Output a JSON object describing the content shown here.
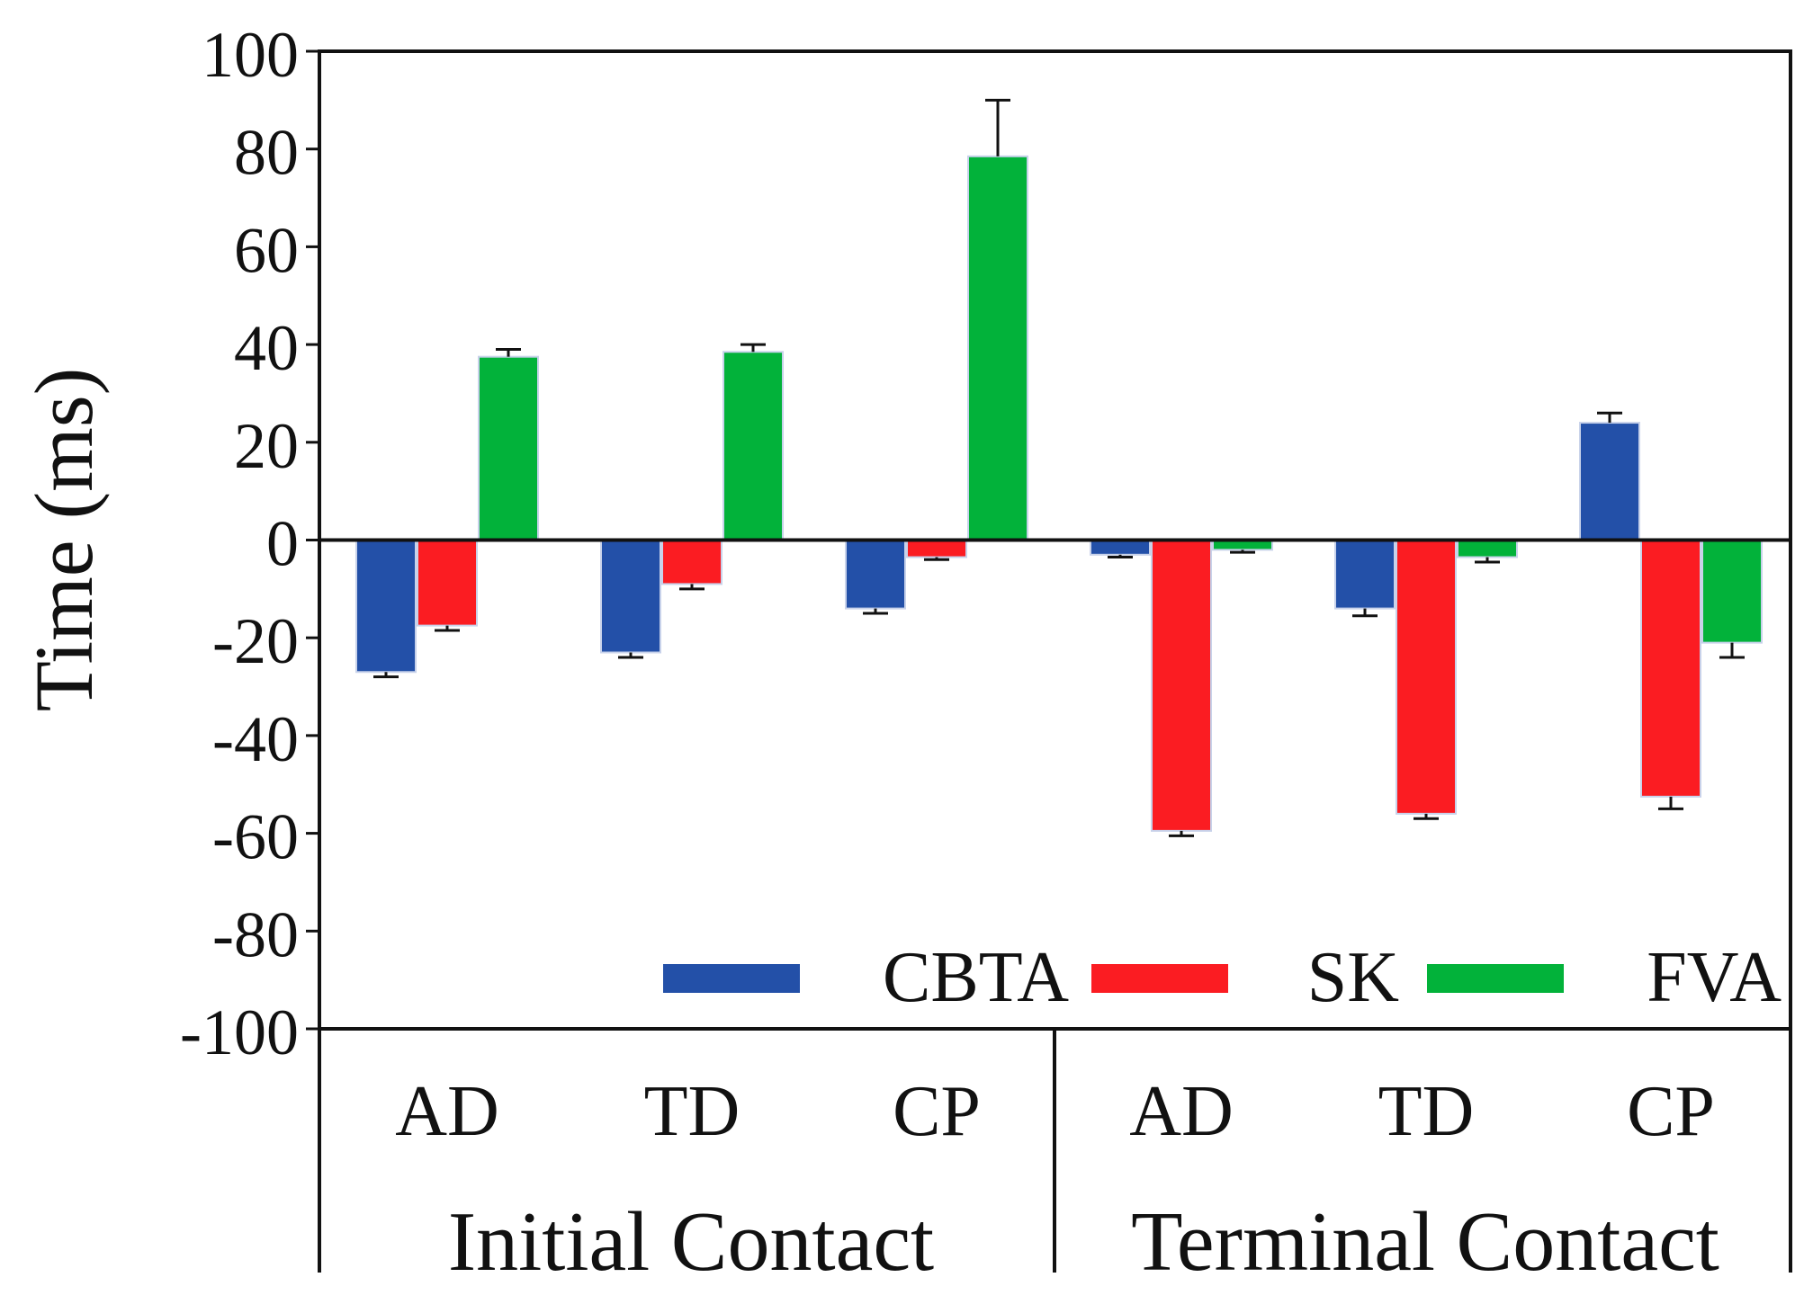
{
  "chart_data": {
    "type": "bar",
    "title": "",
    "xlabel": "",
    "ylabel": "Time  (ms)",
    "ylim": [
      -100,
      100
    ],
    "yticks": [
      100,
      80,
      60,
      40,
      20,
      0,
      -20,
      -40,
      -60,
      -80,
      -100
    ],
    "ytick_labels": [
      "100",
      "80",
      "60",
      "40",
      "20",
      "0",
      "-20",
      "-40",
      "-60",
      "-80",
      "-100"
    ],
    "categories": [
      "AD",
      "TD",
      "CP",
      "AD",
      "TD",
      "CP"
    ],
    "groups": [
      {
        "label": "Initial Contact",
        "categories": [
          "AD",
          "TD",
          "CP"
        ]
      },
      {
        "label": "Terminal Contact",
        "categories": [
          "AD",
          "TD",
          "CP"
        ]
      }
    ],
    "series": [
      {
        "name": "CBTA",
        "color": "#2350a8",
        "values": [
          -27,
          -23,
          -14,
          -3,
          -14,
          24
        ],
        "errors": [
          1,
          1,
          1,
          0.5,
          1.5,
          2
        ]
      },
      {
        "name": "SK",
        "color": "#fb1c22",
        "values": [
          -17.5,
          -9,
          -3.5,
          -59.5,
          -56,
          -52.5
        ],
        "errors": [
          1,
          1,
          0.5,
          1,
          1,
          2.5
        ]
      },
      {
        "name": "FVA",
        "color": "#02b23a",
        "values": [
          37.5,
          38.5,
          78.5,
          -2,
          -3.5,
          -21
        ],
        "errors": [
          1.5,
          1.5,
          11.5,
          0.5,
          1,
          3
        ]
      }
    ],
    "legend": {
      "placement": "bottom-right",
      "entries": [
        "CBTA",
        "SK",
        "FVA"
      ]
    },
    "grid": false
  }
}
